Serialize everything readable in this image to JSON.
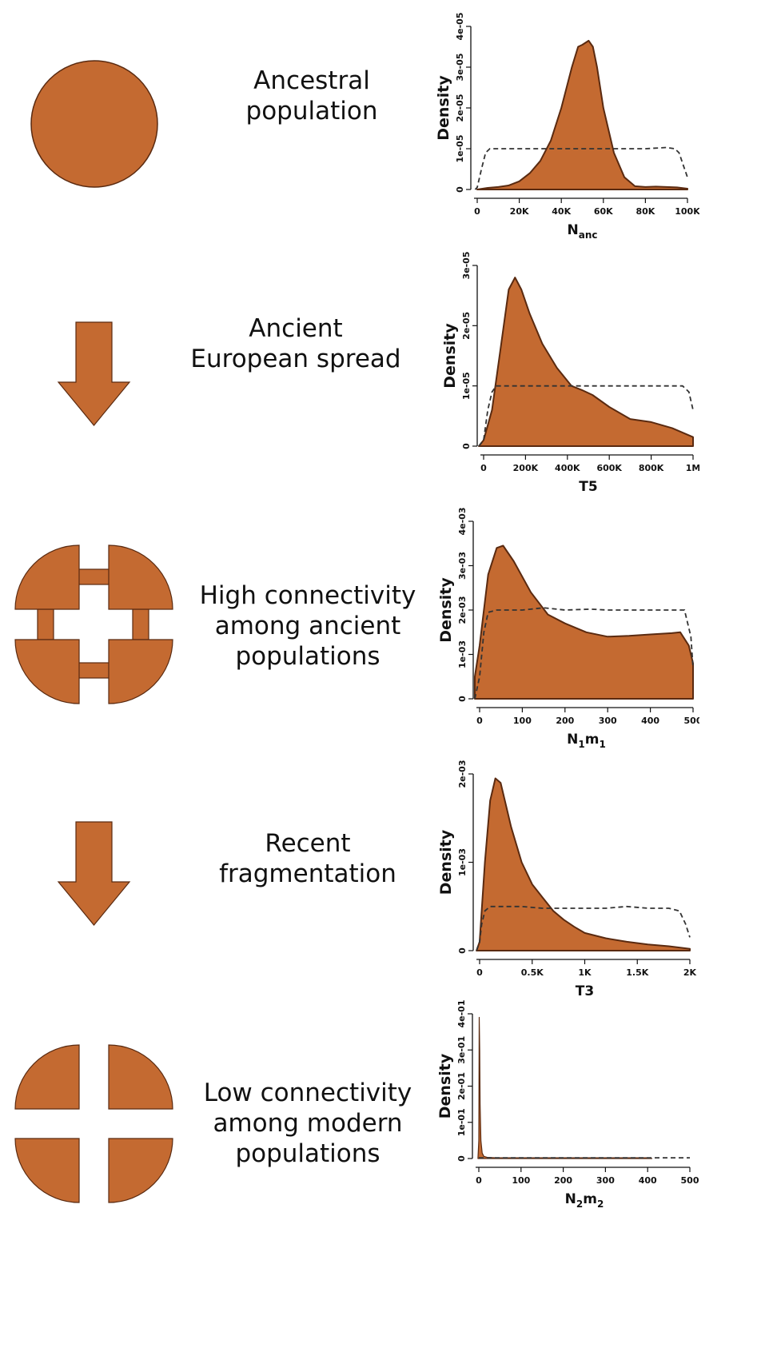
{
  "colors": {
    "fill": "#c46a31",
    "outline": "#5a2a10",
    "prior": "#333333"
  },
  "stages": [
    {
      "kind": "population",
      "caption": [
        "Ancestral",
        "population"
      ]
    },
    {
      "kind": "transition",
      "caption": [
        "Ancient",
        "European spread"
      ]
    },
    {
      "kind": "population",
      "caption": [
        "High connectivity",
        "among ancient",
        "populations"
      ]
    },
    {
      "kind": "transition",
      "caption": [
        "Recent",
        "fragmentation"
      ]
    },
    {
      "kind": "population",
      "caption": [
        "Low connectivity",
        "among modern",
        "populations"
      ]
    }
  ],
  "chart_data": [
    {
      "type": "area",
      "ylabel": "Density",
      "xlabel": {
        "main": "N",
        "sub": "anc"
      },
      "xlim": [
        0,
        100000
      ],
      "ylim": [
        0,
        4e-05
      ],
      "xticks": [
        0,
        20000,
        40000,
        60000,
        80000,
        100000
      ],
      "xtick_labels": [
        "0",
        "20K",
        "40K",
        "60K",
        "80K",
        "100K"
      ],
      "yticks": [
        0,
        1e-05,
        2e-05,
        3e-05,
        4e-05
      ],
      "ytick_labels": [
        "0",
        "1e-05",
        "2e-05",
        "3e-05",
        "4e-05"
      ],
      "series": [
        {
          "role": "posterior",
          "style": "filled",
          "x": [
            0,
            5000,
            10000,
            15000,
            20000,
            25000,
            30000,
            35000,
            40000,
            45000,
            48000,
            50000,
            53000,
            55000,
            57000,
            60000,
            65000,
            70000,
            75000,
            80000,
            85000,
            90000,
            95000,
            100000
          ],
          "y": [
            0,
            4e-07,
            6e-07,
            1e-06,
            2e-06,
            4e-06,
            7e-06,
            1.2e-05,
            2e-05,
            3e-05,
            3.5e-05,
            3.55e-05,
            3.65e-05,
            3.5e-05,
            3e-05,
            2e-05,
            9e-06,
            3e-06,
            8e-07,
            6e-07,
            7e-07,
            6e-07,
            5e-07,
            2e-07
          ]
        },
        {
          "role": "prior",
          "style": "dashed",
          "x": [
            -1000,
            0,
            2000,
            4000,
            6000,
            10000,
            20000,
            40000,
            60000,
            80000,
            90000,
            94000,
            96000,
            98000,
            100000
          ],
          "y": [
            0,
            5e-07,
            5e-06,
            9e-06,
            1e-05,
            1e-05,
            1e-05,
            1e-05,
            1e-05,
            1e-05,
            1.03e-05,
            1e-05,
            9e-06,
            6e-06,
            3e-06
          ]
        }
      ]
    },
    {
      "type": "area",
      "ylabel": "Density",
      "xlabel": {
        "main": "T5",
        "sub": ""
      },
      "xlim": [
        0,
        1000000
      ],
      "ylim": [
        0,
        3e-05
      ],
      "xticks": [
        0,
        200000,
        400000,
        600000,
        800000,
        1000000
      ],
      "xtick_labels": [
        "0",
        "200K",
        "400K",
        "600K",
        "800K",
        "1M"
      ],
      "yticks": [
        0,
        1e-05,
        2e-05,
        3e-05
      ],
      "ytick_labels": [
        "0",
        "1e-05",
        "2e-05",
        "3e-05"
      ],
      "series": [
        {
          "role": "posterior",
          "style": "filled",
          "x": [
            -30000,
            0,
            40000,
            80000,
            120000,
            150000,
            180000,
            220000,
            280000,
            350000,
            420000,
            470000,
            520000,
            600000,
            700000,
            800000,
            900000,
            1000000
          ],
          "y": [
            0,
            1e-06,
            6e-06,
            1.6e-05,
            2.6e-05,
            2.8e-05,
            2.6e-05,
            2.2e-05,
            1.7e-05,
            1.3e-05,
            1e-05,
            9.3e-06,
            8.5e-06,
            6.5e-06,
            4.5e-06,
            4e-06,
            3e-06,
            1.5e-06
          ]
        },
        {
          "role": "prior",
          "style": "dashed",
          "x": [
            -30000,
            0,
            20000,
            40000,
            60000,
            100000,
            200000,
            400000,
            600000,
            800000,
            950000,
            980000,
            1000000
          ],
          "y": [
            0,
            1e-06,
            6e-06,
            9e-06,
            1e-05,
            1e-05,
            1e-05,
            1e-05,
            1e-05,
            1e-05,
            1e-05,
            9e-06,
            6e-06
          ]
        }
      ]
    },
    {
      "type": "area",
      "ylabel": "Density",
      "xlabel": {
        "main": "N",
        "sub": "1",
        "main2": "m",
        "sub2": "1"
      },
      "xlim": [
        0,
        500
      ],
      "ylim": [
        0,
        0.004
      ],
      "xticks": [
        0,
        100,
        200,
        300,
        400,
        500
      ],
      "xtick_labels": [
        "0",
        "100",
        "200",
        "300",
        "400",
        "500"
      ],
      "yticks": [
        0,
        0.001,
        0.002,
        0.003,
        0.004
      ],
      "ytick_labels": [
        "0",
        "1e-03",
        "2e-03",
        "3e-03",
        "4e-03"
      ],
      "series": [
        {
          "role": "posterior",
          "style": "filled",
          "x": [
            -20,
            0,
            20,
            40,
            55,
            80,
            120,
            160,
            200,
            250,
            300,
            350,
            400,
            450,
            470,
            490,
            500
          ],
          "y": [
            0.0005,
            0.0012,
            0.0028,
            0.0034,
            0.00345,
            0.0031,
            0.0024,
            0.0019,
            0.0017,
            0.0015,
            0.0014,
            0.00142,
            0.00145,
            0.00148,
            0.0015,
            0.0012,
            0.0008
          ]
        },
        {
          "role": "prior",
          "style": "dashed",
          "x": [
            -20,
            0,
            10,
            20,
            40,
            100,
            150,
            200,
            260,
            300,
            400,
            480,
            495,
            500
          ],
          "y": [
            0,
            0.0005,
            0.0015,
            0.00195,
            0.002,
            0.002,
            0.00205,
            0.002,
            0.00202,
            0.002,
            0.002,
            0.002,
            0.0014,
            0.0007
          ]
        }
      ]
    },
    {
      "type": "area",
      "ylabel": "Density",
      "xlabel": {
        "main": "T3",
        "sub": ""
      },
      "xlim": [
        0,
        2000
      ],
      "ylim": [
        0,
        0.002
      ],
      "xticks": [
        0,
        500,
        1000,
        1500,
        2000
      ],
      "xtick_labels": [
        "0",
        "0.5K",
        "1K",
        "1.5K",
        "2K"
      ],
      "yticks": [
        0,
        0.001,
        0.002
      ],
      "ytick_labels": [
        "0",
        "1e-03",
        "2e-03"
      ],
      "series": [
        {
          "role": "posterior",
          "style": "filled",
          "x": [
            -30,
            0,
            50,
            100,
            150,
            200,
            300,
            400,
            500,
            600,
            700,
            800,
            900,
            1000,
            1200,
            1400,
            1600,
            1800,
            2000
          ],
          "y": [
            0,
            0.0001,
            0.001,
            0.0017,
            0.00195,
            0.0019,
            0.0014,
            0.001,
            0.00075,
            0.0006,
            0.00045,
            0.00035,
            0.00027,
            0.0002,
            0.00014,
            0.0001,
            7e-05,
            5e-05,
            2e-05
          ]
        },
        {
          "role": "prior",
          "style": "dashed",
          "x": [
            -30,
            0,
            20,
            50,
            100,
            200,
            400,
            600,
            800,
            1000,
            1200,
            1400,
            1600,
            1800,
            1900,
            1960,
            2000
          ],
          "y": [
            0,
            0.0001,
            0.0003,
            0.00045,
            0.0005,
            0.0005,
            0.0005,
            0.00048,
            0.00048,
            0.00048,
            0.00048,
            0.0005,
            0.00048,
            0.00048,
            0.00045,
            0.0003,
            0.00015
          ]
        }
      ]
    },
    {
      "type": "area",
      "ylabel": "Density",
      "xlabel": {
        "main": "N",
        "sub": "2",
        "main2": "m",
        "sub2": "2"
      },
      "xlim": [
        0,
        500
      ],
      "ylim": [
        0,
        0.4
      ],
      "xticks": [
        0,
        100,
        200,
        300,
        400,
        500
      ],
      "xtick_labels": [
        "0",
        "100",
        "200",
        "300",
        "400",
        "500"
      ],
      "yticks": [
        0,
        0.1,
        0.2,
        0.3,
        0.4
      ],
      "ytick_labels": [
        "0",
        "1e-01",
        "2e-01",
        "3e-01",
        "4e-01"
      ],
      "series": [
        {
          "role": "posterior",
          "style": "filled",
          "x": [
            -2,
            0,
            1,
            2,
            3,
            5,
            8,
            12,
            20,
            40,
            100,
            200,
            300,
            400,
            410
          ],
          "y": [
            0,
            0.05,
            0.39,
            0.3,
            0.15,
            0.05,
            0.015,
            0.006,
            0.003,
            0.002,
            0.002,
            0.002,
            0.002,
            0.002,
            0.0
          ]
        },
        {
          "role": "prior",
          "style": "dashed",
          "x": [
            0,
            100,
            200,
            300,
            400,
            500
          ],
          "y": [
            0.002,
            0.002,
            0.002,
            0.002,
            0.002,
            0.002
          ]
        }
      ]
    }
  ]
}
